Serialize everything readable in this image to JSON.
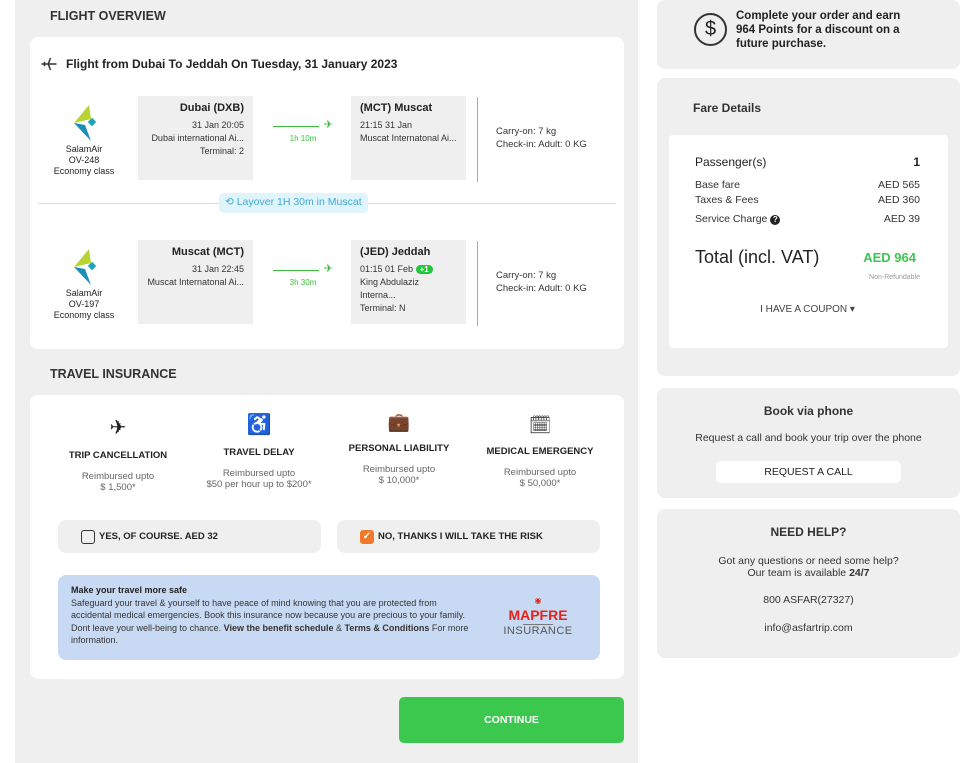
{
  "flight_overview": {
    "section_title": "FLIGHT OVERVIEW",
    "title": "Flight from Dubai To Jeddah On Tuesday, 31 January 2023",
    "segments": [
      {
        "airline": "SalamAir",
        "flight": "OV-248",
        "cabin": "Economy class",
        "from_title": "Dubai (DXB)",
        "from_time": "31 Jan 20:05",
        "from_airport": "Dubai international Ai...",
        "from_terminal": "Terminal: 2",
        "duration": "1h 10m",
        "to_title": "(MCT) Muscat",
        "to_time": "21:15 31 Jan",
        "to_airport": "Muscat Internatonal Ai...",
        "to_terminal": "",
        "day_badge": "",
        "carry_on": "Carry-on: 7 kg",
        "check_in": "Check-in: Adult: 0 KG"
      },
      {
        "airline": "SalamAir",
        "flight": "OV-197",
        "cabin": "Economy class",
        "from_title": "Muscat (MCT)",
        "from_time": "31 Jan 22:45",
        "from_airport": "Muscat Internatonal Ai...",
        "from_terminal": "",
        "duration": "3h 30m",
        "to_title": "(JED) Jeddah",
        "to_time": "01:15 01 Feb",
        "to_airport": "King Abdulaziz Interna...",
        "to_terminal": "Terminal: N",
        "day_badge": "+1",
        "carry_on": "Carry-on: 7 kg",
        "check_in": "Check-in: Adult: 0 KG"
      }
    ],
    "layover": "Layover 1H 30m in Muscat"
  },
  "insurance": {
    "section_title": "TRAVEL INSURANCE",
    "benefits": [
      {
        "icon": "airplane-icon",
        "title": "TRIP CANCELLATION",
        "line1": "Reimbursed upto",
        "line2": "$ 1,500*"
      },
      {
        "icon": "seat-icon",
        "title": "TRAVEL DELAY",
        "line1": "Reimbursed upto",
        "line2": "$50 per hour up to $200*"
      },
      {
        "icon": "briefcase-icon",
        "title": "PERSONAL LIABILITY",
        "line1": "Reimbursed upto",
        "line2": "$ 10,000*"
      },
      {
        "icon": "stethoscope-calendar-icon",
        "title": "MEDICAL EMERGENCY",
        "line1": "Reimbursed upto",
        "line2": "$ 50,000*"
      }
    ],
    "option_yes": "YES, OF COURSE. AED 32",
    "option_no": "NO, THANKS I WILL TAKE THE RISK",
    "selected": "no",
    "info_title": "Make your travel more safe",
    "info_text": "Safeguard your travel & yourself to have peace of mind knowing that you are protected from accidental medical emergencies. Book this insurance now because you are precious to your family. Dont leave your well-being to chance.",
    "info_link1": "View the benefit schedule",
    "info_amp": "&",
    "info_link2": "Terms & Conditions",
    "info_tail": "For more information.",
    "brand": "MAPFRE",
    "brand_sub": "INSURANCE"
  },
  "continue_label": "CONTINUE",
  "points": {
    "text": "Complete your order and earn 964 Points for a discount on a future purchase."
  },
  "fare": {
    "title": "Fare Details",
    "passengers_label": "Passenger(s)",
    "passengers": "1",
    "base_label": "Base fare",
    "base": "AED 565",
    "taxes_label": "Taxes & Fees",
    "taxes": "AED 360",
    "service_label": "Service Charge",
    "service": "AED 39",
    "total_label": "Total (incl. VAT)",
    "total": "AED 964",
    "refund": "Non-Refundable",
    "coupon": "I HAVE A COUPON"
  },
  "phone": {
    "title": "Book via phone",
    "text": "Request a call and book your trip over the phone",
    "button": "REQUEST A CALL"
  },
  "help": {
    "title": "NEED HELP?",
    "line1": "Got any questions or need some help?",
    "line2": "Our team is available",
    "hours": "24/7",
    "phone": "800 ASFAR(27327)",
    "email": "info@asfartrip.com"
  },
  "colors": {
    "green": "#3cc84f",
    "orange": "#f07a2a",
    "info_bg": "#c8daf3",
    "layover_bg": "#dff4fb",
    "mapfre_red": "#e4241c"
  }
}
